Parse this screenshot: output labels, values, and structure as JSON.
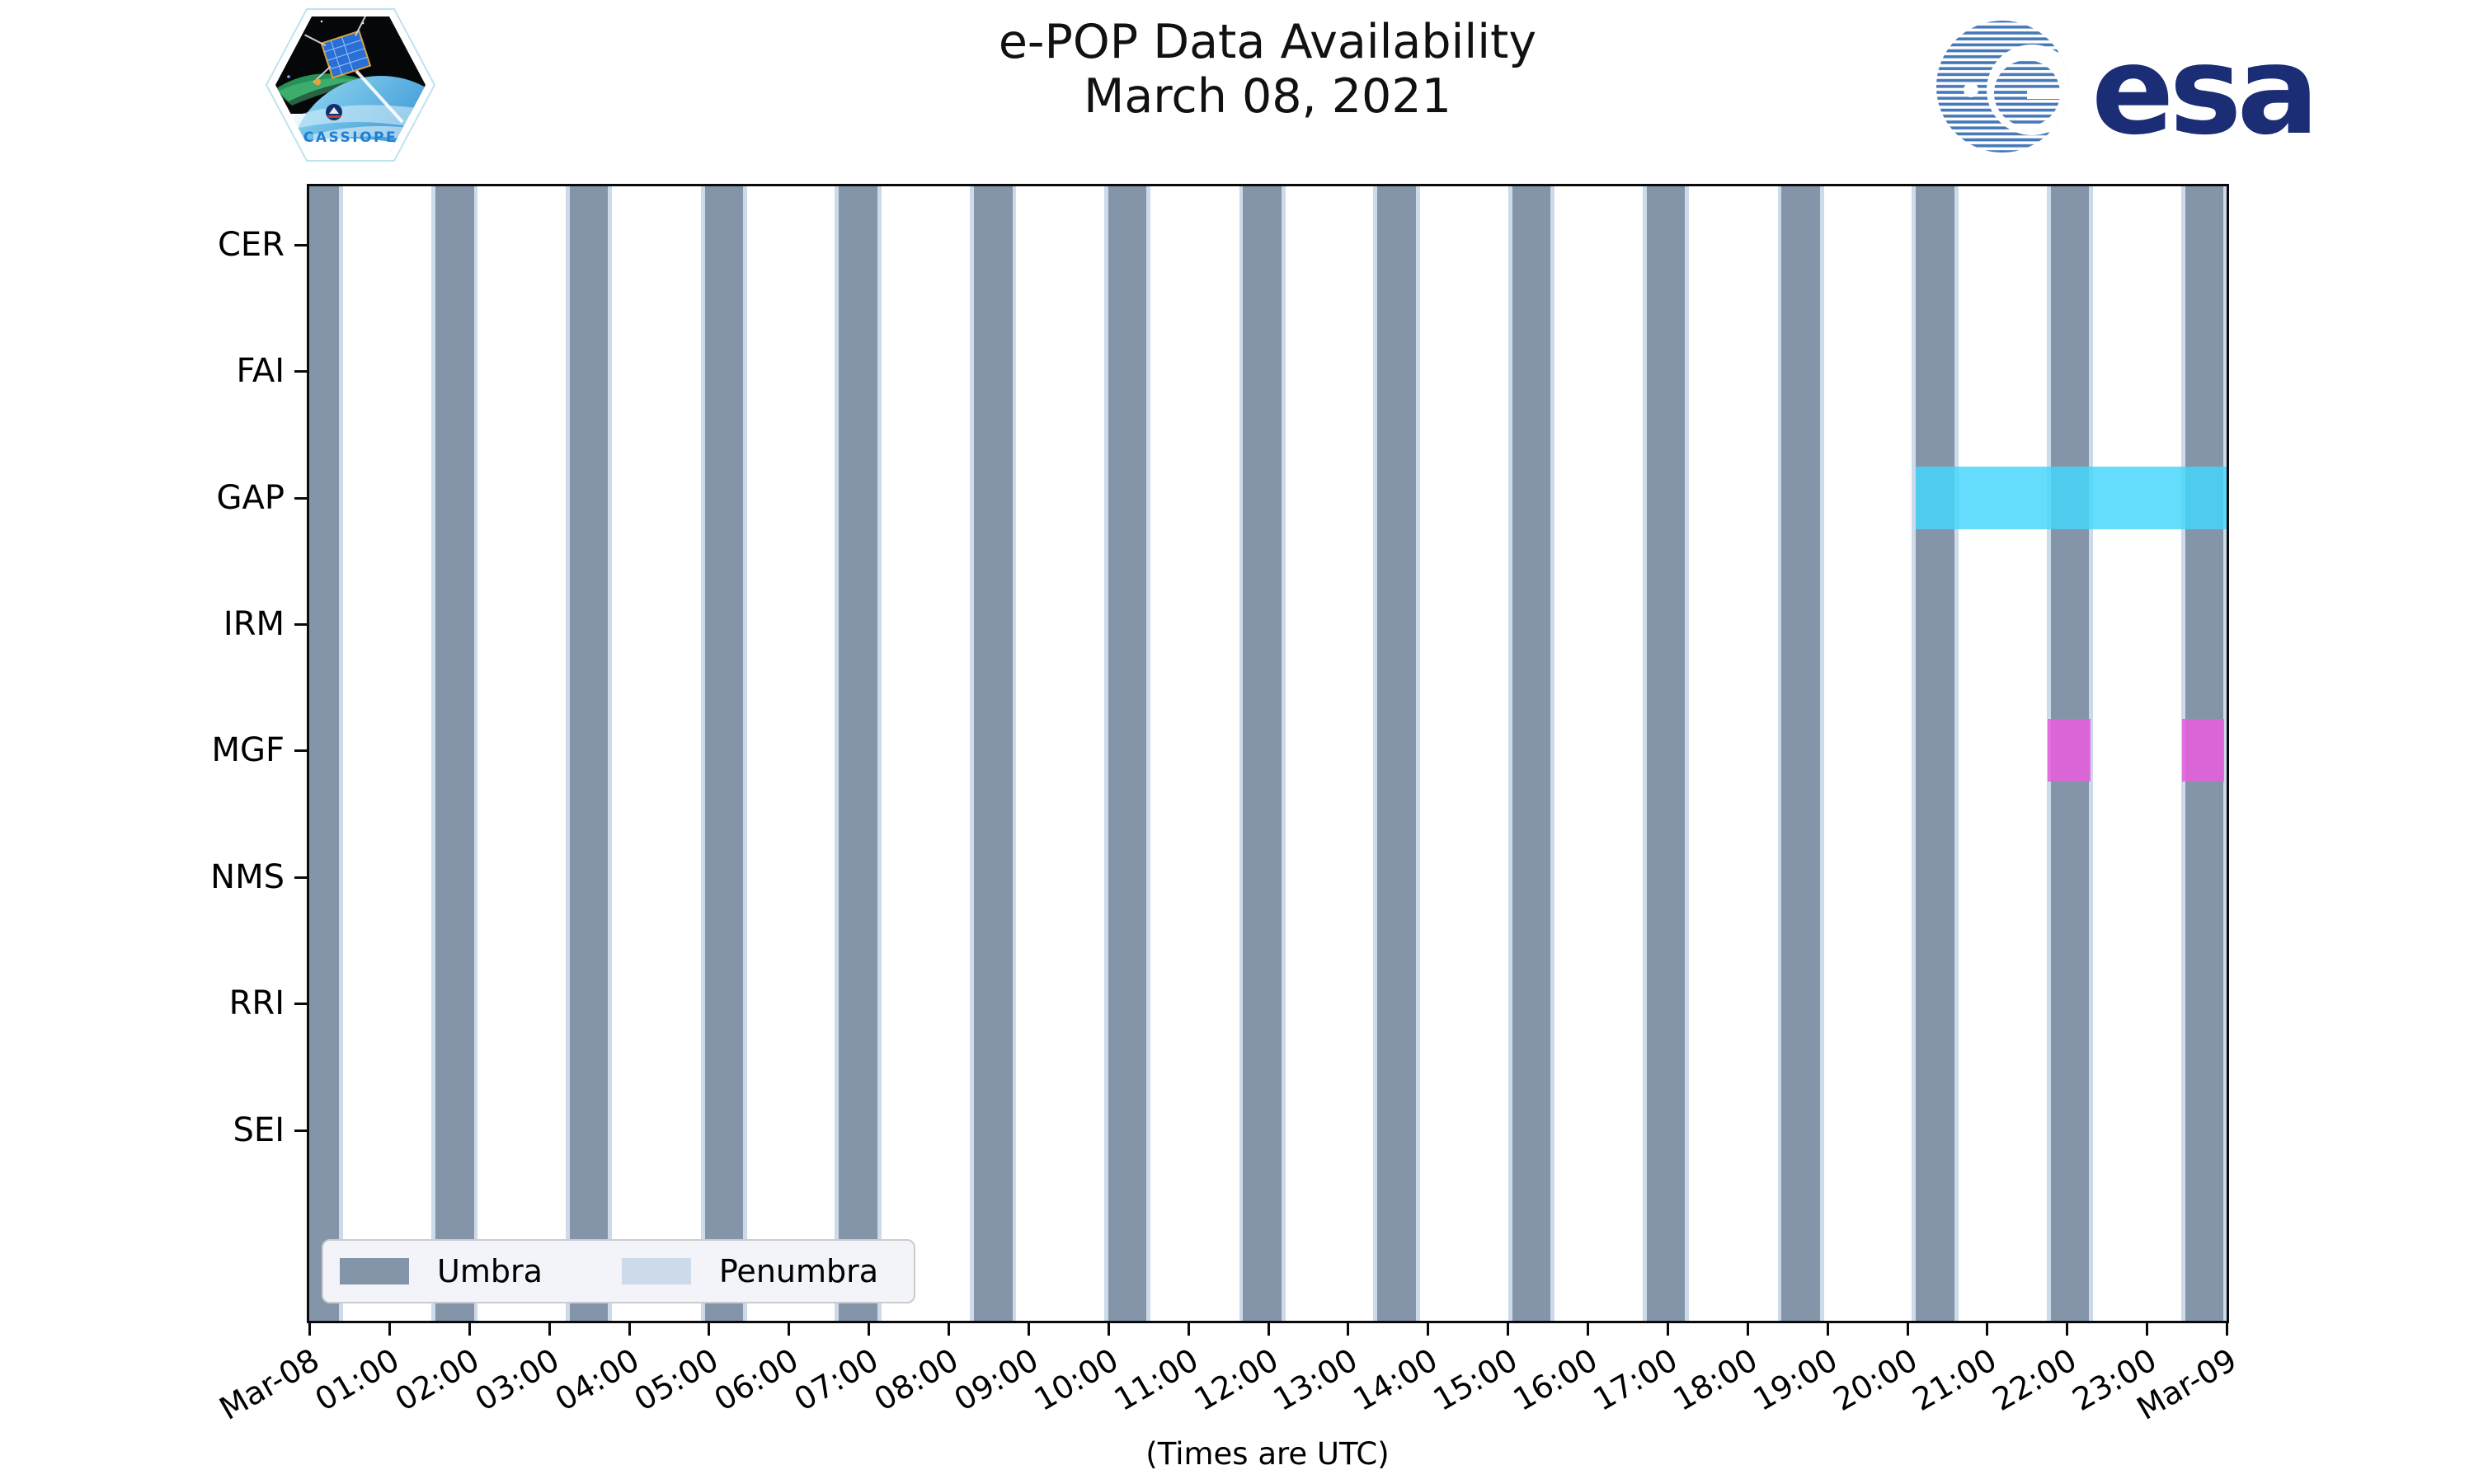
{
  "header": {
    "title_line1": "e-POP Data Availability",
    "title_line2": "March 08, 2021",
    "cassiope_label": "CASSIOPE",
    "esa_label": "esa"
  },
  "legend": {
    "umbra_label": "Umbra",
    "penumbra_label": "Penumbra"
  },
  "footer": {
    "caption": "(Times are UTC)"
  },
  "colors": {
    "umbra": "#8495a9",
    "penumbra": "#ccdae9",
    "gap": "rgba(69,215,250,0.84)",
    "mgf": "rgba(230,95,220,0.88)",
    "axis": "#0a0a0a",
    "esa_navy": "#1b2d74",
    "esa_stripe": "#4578b9",
    "cassiope_blue": "#1f7fd0"
  },
  "chart_data": {
    "type": "gantt-timeline",
    "title": "e-POP Data Availability",
    "subtitle": "March 08, 2021",
    "x_axis": {
      "label": "(Times are UTC)",
      "range_hours": [
        0,
        24
      ],
      "tick_hours": [
        0,
        1,
        2,
        3,
        4,
        5,
        6,
        7,
        8,
        9,
        10,
        11,
        12,
        13,
        14,
        15,
        16,
        17,
        18,
        19,
        20,
        21,
        22,
        23,
        24
      ],
      "tick_labels": [
        "Mar-08",
        "01:00",
        "02:00",
        "03:00",
        "04:00",
        "05:00",
        "06:00",
        "07:00",
        "08:00",
        "09:00",
        "10:00",
        "11:00",
        "12:00",
        "13:00",
        "14:00",
        "15:00",
        "16:00",
        "17:00",
        "18:00",
        "19:00",
        "20:00",
        "21:00",
        "22:00",
        "23:00",
        "Mar-09"
      ]
    },
    "y_axis": {
      "categories": [
        "CER",
        "FAI",
        "GAP",
        "IRM",
        "MGF",
        "NMS",
        "RRI",
        "SEI"
      ]
    },
    "umbra_intervals_hours": [
      [
        -0.11,
        0.37
      ],
      [
        1.58,
        2.06
      ],
      [
        3.26,
        3.74
      ],
      [
        4.95,
        5.43
      ],
      [
        6.63,
        7.11
      ],
      [
        8.32,
        8.8
      ],
      [
        10.0,
        10.48
      ],
      [
        11.69,
        12.17
      ],
      [
        13.37,
        13.85
      ],
      [
        15.06,
        15.54
      ],
      [
        16.74,
        17.22
      ],
      [
        18.43,
        18.91
      ],
      [
        20.11,
        20.59
      ],
      [
        21.8,
        22.28
      ],
      [
        23.48,
        23.96
      ]
    ],
    "penumbra_margin_hours": 0.05,
    "series": [
      {
        "name": "GAP",
        "row": "GAP",
        "color_key": "gap",
        "intervals": [
          [
            20.11,
            24.0
          ]
        ]
      },
      {
        "name": "MGF",
        "row": "MGF",
        "color_key": "mgf",
        "intervals": [
          [
            21.76,
            22.3
          ],
          [
            23.44,
            23.97
          ]
        ]
      }
    ],
    "legend_entries": [
      "Umbra",
      "Penumbra"
    ],
    "grid": false,
    "legend_position": "lower left"
  }
}
